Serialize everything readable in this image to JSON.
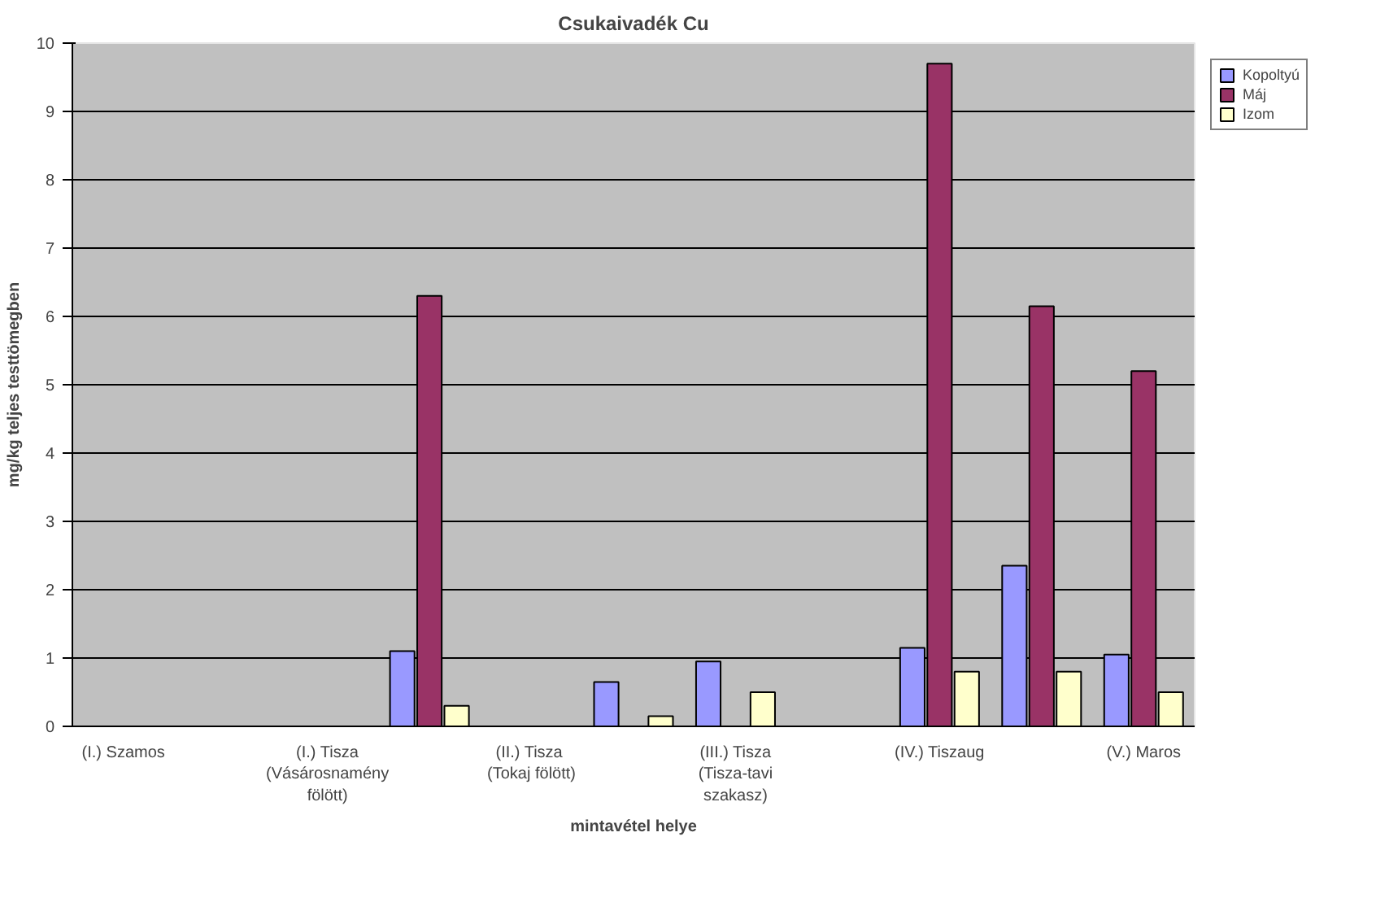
{
  "chart_data": {
    "type": "bar",
    "title": "Csukaivadék Cu",
    "xlabel": "mintavétel helye",
    "ylabel": "mg/kg teljes testtömegben",
    "categories": [
      "(I.) Szamos",
      null,
      "(I.) Tisza (Vásárosnamény fölött)",
      null,
      "(II.)  Tisza (Tokaj fölött)",
      null,
      "(III.) Tisza (Tisza-tavi szakasz)",
      null,
      "(IV.) Tiszaug",
      null,
      "(V.) Maros"
    ],
    "series": [
      {
        "name": "Kopoltyú",
        "color": "#9999ff",
        "values": [
          null,
          null,
          null,
          1.1,
          null,
          0.65,
          0.95,
          null,
          1.15,
          2.35,
          1.05
        ]
      },
      {
        "name": "Máj",
        "color": "#993366",
        "values": [
          null,
          null,
          null,
          6.3,
          null,
          null,
          null,
          null,
          9.7,
          6.15,
          5.2
        ]
      },
      {
        "name": "Izom",
        "color": "#ffffcc",
        "values": [
          null,
          null,
          null,
          0.3,
          null,
          0.15,
          0.5,
          null,
          0.8,
          0.8,
          0.5
        ]
      }
    ],
    "ylim": [
      0,
      10
    ],
    "yticks": [
      0,
      1,
      2,
      3,
      4,
      5,
      6,
      7,
      8,
      9,
      10
    ],
    "grid": "y",
    "legend": "top right"
  }
}
